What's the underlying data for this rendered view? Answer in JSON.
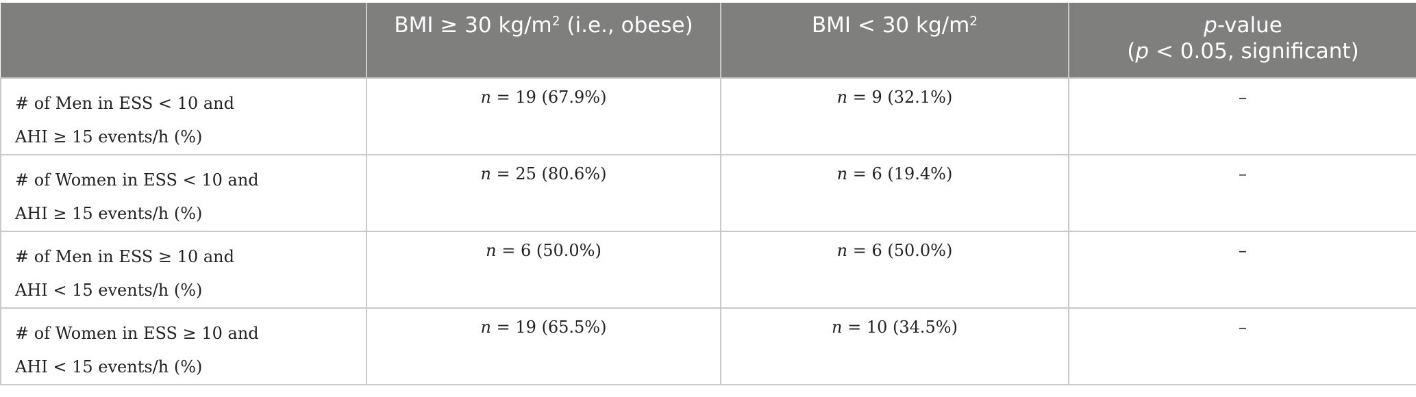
{
  "table": {
    "headers": [
      {
        "pre": "",
        "sup": "",
        "post": ""
      },
      {
        "pre": "BMI ≥ 30 kg/m",
        "sup": "2",
        "post": " (i.e., obese)"
      },
      {
        "pre": "BMI < 30 kg/m",
        "sup": "2",
        "post": ""
      },
      {
        "p_italic": "p",
        "line1_rest": "-value",
        "line2_open": "(",
        "line2_p": "p",
        "line2_rest": " < 0.05, significant)"
      }
    ],
    "rows": [
      {
        "label_line1": "# of Men in ESS < 10 and",
        "label_line2": "AHI ≥ 15 events/h (%)",
        "obese_n": "n",
        "obese_value": " = 19 (67.9%)",
        "nonobese_n": "n",
        "nonobese_value": " = 9 (32.1%)",
        "p_value": "–"
      },
      {
        "label_line1": "# of Women in ESS < 10 and",
        "label_line2": "AHI ≥ 15 events/h (%)",
        "obese_n": "n",
        "obese_value": " = 25 (80.6%)",
        "nonobese_n": "n",
        "nonobese_value": " = 6 (19.4%)",
        "p_value": "–"
      },
      {
        "label_line1": "# of Men in ESS ≥ 10 and",
        "label_line2": "AHI < 15 events/h (%)",
        "obese_n": "n",
        "obese_value": " = 6 (50.0%)",
        "nonobese_n": "n",
        "nonobese_value": " = 6 (50.0%)",
        "p_value": "–"
      },
      {
        "label_line1": "# of Women in ESS ≥ 10 and",
        "label_line2": "AHI < 15 events/h (%)",
        "obese_n": "n",
        "obese_value": " = 19 (65.5%)",
        "nonobese_n": "n",
        "nonobese_value": " = 10 (34.5%)",
        "p_value": "–"
      }
    ]
  },
  "colors": {
    "header_bg": "#7f7f7e",
    "header_text": "#ffffff",
    "grid": "#c9c9c9",
    "body_text": "#222222"
  }
}
